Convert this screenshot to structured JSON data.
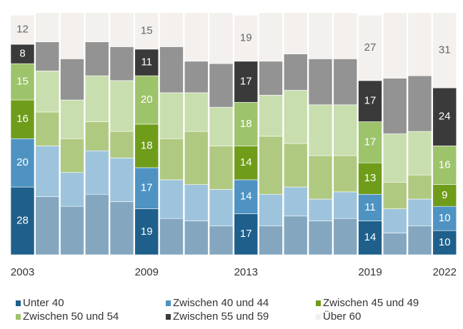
{
  "chart_data": {
    "type": "stacked_bar_100",
    "categories": [
      "2003",
      null,
      null,
      null,
      null,
      "2009",
      null,
      null,
      null,
      "2013",
      null,
      null,
      null,
      null,
      "2019",
      null,
      null,
      "2022"
    ],
    "series": [
      {
        "name": "Unter 40",
        "color": "#1f5f8b",
        "values": [
          28,
          24,
          20,
          25,
          22,
          19,
          15,
          14,
          12,
          17,
          12,
          16,
          14,
          15,
          14,
          9,
          12,
          10
        ]
      },
      {
        "name": "Zwischen 40 und 44",
        "color": "#4e93c2",
        "values": [
          20,
          21,
          14,
          18,
          18,
          17,
          16,
          15,
          15,
          14,
          13,
          12,
          9,
          11,
          11,
          10,
          11,
          10
        ]
      },
      {
        "name": "Zwischen 45 und 49",
        "color": "#6f9d1a",
        "values": [
          16,
          14,
          14,
          12,
          11,
          18,
          17,
          22,
          18,
          14,
          24,
          18,
          18,
          15,
          13,
          11,
          10,
          9
        ]
      },
      {
        "name": "Zwischen 50 und 54",
        "color": "#9dc36b",
        "values": [
          15,
          17,
          16,
          19,
          21,
          20,
          19,
          16,
          16,
          18,
          17,
          22,
          21,
          21,
          17,
          20,
          18,
          16
        ]
      },
      {
        "name": "Zwischen 55 und 59",
        "color": "#3a3a3a",
        "values": [
          8,
          12,
          17,
          14,
          14,
          11,
          19,
          13,
          18,
          17,
          14,
          15,
          19,
          19,
          17,
          23,
          23,
          24
        ]
      },
      {
        "name": "Über 60",
        "color": "#f3f0ed",
        "values": [
          12,
          12,
          19,
          12,
          14,
          15,
          14,
          20,
          21,
          19,
          20,
          17,
          19,
          19,
          27,
          27,
          26,
          31
        ]
      }
    ],
    "ylim": [
      0,
      100
    ]
  }
}
